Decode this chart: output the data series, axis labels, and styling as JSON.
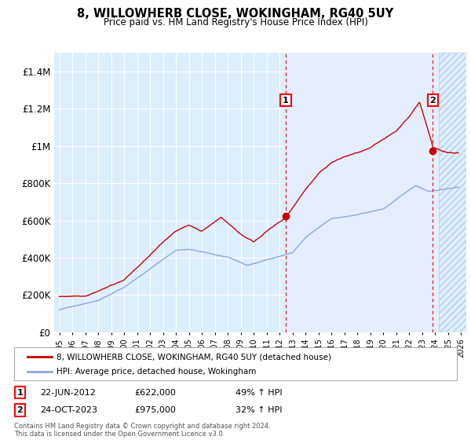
{
  "title": "8, WILLOWHERB CLOSE, WOKINGHAM, RG40 5UY",
  "subtitle": "Price paid vs. HM Land Registry's House Price Index (HPI)",
  "ylim": [
    0,
    1500000
  ],
  "yticks": [
    0,
    200000,
    400000,
    600000,
    800000,
    1000000,
    1200000,
    1400000
  ],
  "ytick_labels": [
    "£0",
    "£200K",
    "£400K",
    "£600K",
    "£800K",
    "£1M",
    "£1.2M",
    "£1.4M"
  ],
  "xlim_start": 1994.6,
  "xlim_end": 2026.4,
  "background_color": "#ffffff",
  "plot_bg_color": "#ddeeff",
  "plot_bg_color2": "#e8f2ff",
  "grid_color": "#ffffff",
  "transaction1_x": 2012.47,
  "transaction1_y": 622000,
  "transaction1_label": "1",
  "transaction1_date": "22-JUN-2012",
  "transaction1_price": "£622,000",
  "transaction1_hpi": "49% ↑ HPI",
  "transaction2_x": 2023.81,
  "transaction2_y": 975000,
  "transaction2_label": "2",
  "transaction2_date": "24-OCT-2023",
  "transaction2_price": "£975,000",
  "transaction2_hpi": "32% ↑ HPI",
  "line1_color": "#cc0000",
  "line2_color": "#88aadd",
  "legend1_label": "8, WILLOWHERB CLOSE, WOKINGHAM, RG40 5UY (detached house)",
  "legend2_label": "HPI: Average price, detached house, Wokingham",
  "footer": "Contains HM Land Registry data © Crown copyright and database right 2024.\nThis data is licensed under the Open Government Licence v3.0.",
  "hatch_start": 2024.3
}
